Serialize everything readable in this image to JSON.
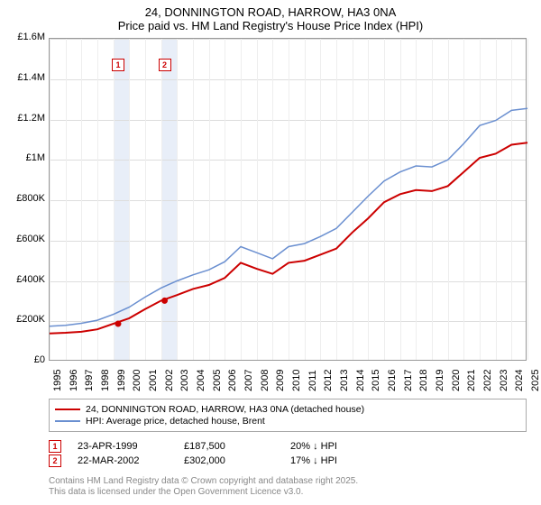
{
  "title_line1": "24, DONNINGTON ROAD, HARROW, HA3 0NA",
  "title_line2": "Price paid vs. HM Land Registry's House Price Index (HPI)",
  "chart": {
    "type": "line",
    "background_color": "#ffffff",
    "grid_color": "#dddddd",
    "border_color": "#999999",
    "band_color": "#e8eef8",
    "ylim": [
      0,
      1600000
    ],
    "ytick_step": 200000,
    "ytick_labels": [
      "£0",
      "£200K",
      "£400K",
      "£600K",
      "£800K",
      "£1M",
      "£1.2M",
      "£1.4M",
      "£1.6M"
    ],
    "x_years": [
      1995,
      1996,
      1997,
      1998,
      1999,
      2000,
      2001,
      2002,
      2003,
      2004,
      2005,
      2006,
      2007,
      2008,
      2009,
      2010,
      2011,
      2012,
      2013,
      2014,
      2015,
      2016,
      2017,
      2018,
      2019,
      2020,
      2021,
      2022,
      2023,
      2024,
      2025
    ],
    "bands": [
      {
        "start": 1999.0,
        "end": 2000.0
      },
      {
        "start": 2002.0,
        "end": 2003.0
      }
    ],
    "series": [
      {
        "name": "price_paid",
        "label": "24, DONNINGTON ROAD, HARROW, HA3 0NA (detached house)",
        "color": "#cc0000",
        "line_width": 2,
        "data": [
          [
            1995,
            140000
          ],
          [
            1996,
            143000
          ],
          [
            1997,
            148000
          ],
          [
            1998,
            160000
          ],
          [
            1999,
            187500
          ],
          [
            2000,
            215000
          ],
          [
            2001,
            260000
          ],
          [
            2002,
            302000
          ],
          [
            2003,
            330000
          ],
          [
            2004,
            360000
          ],
          [
            2005,
            380000
          ],
          [
            2006,
            415000
          ],
          [
            2007,
            490000
          ],
          [
            2008,
            460000
          ],
          [
            2009,
            435000
          ],
          [
            2010,
            490000
          ],
          [
            2011,
            500000
          ],
          [
            2012,
            530000
          ],
          [
            2013,
            560000
          ],
          [
            2014,
            640000
          ],
          [
            2015,
            710000
          ],
          [
            2016,
            790000
          ],
          [
            2017,
            830000
          ],
          [
            2018,
            850000
          ],
          [
            2019,
            845000
          ],
          [
            2020,
            870000
          ],
          [
            2021,
            940000
          ],
          [
            2022,
            1010000
          ],
          [
            2023,
            1030000
          ],
          [
            2024,
            1075000
          ],
          [
            2025,
            1085000
          ]
        ]
      },
      {
        "name": "hpi",
        "label": "HPI: Average price, detached house, Brent",
        "color": "#6a8fd0",
        "line_width": 1.5,
        "data": [
          [
            1995,
            175000
          ],
          [
            1996,
            180000
          ],
          [
            1997,
            190000
          ],
          [
            1998,
            205000
          ],
          [
            1999,
            234000
          ],
          [
            2000,
            270000
          ],
          [
            2001,
            320000
          ],
          [
            2002,
            365000
          ],
          [
            2003,
            400000
          ],
          [
            2004,
            430000
          ],
          [
            2005,
            455000
          ],
          [
            2006,
            495000
          ],
          [
            2007,
            570000
          ],
          [
            2008,
            540000
          ],
          [
            2009,
            510000
          ],
          [
            2010,
            570000
          ],
          [
            2011,
            585000
          ],
          [
            2012,
            620000
          ],
          [
            2013,
            660000
          ],
          [
            2014,
            740000
          ],
          [
            2015,
            820000
          ],
          [
            2016,
            895000
          ],
          [
            2017,
            940000
          ],
          [
            2018,
            970000
          ],
          [
            2019,
            965000
          ],
          [
            2020,
            1000000
          ],
          [
            2021,
            1080000
          ],
          [
            2022,
            1170000
          ],
          [
            2023,
            1195000
          ],
          [
            2024,
            1245000
          ],
          [
            2025,
            1255000
          ]
        ]
      }
    ],
    "markers": [
      {
        "num": "1",
        "box_color": "#cc0000",
        "year": 1999.3,
        "price": 187500
      },
      {
        "num": "2",
        "box_color": "#cc0000",
        "year": 2002.22,
        "price": 302000
      }
    ],
    "label_fontsize": 11,
    "title_fontsize": 13
  },
  "legend": {
    "items": [
      {
        "color": "#cc0000",
        "width": 2,
        "label": "24, DONNINGTON ROAD, HARROW, HA3 0NA (detached house)"
      },
      {
        "color": "#6a8fd0",
        "width": 1.5,
        "label": "HPI: Average price, detached house, Brent"
      }
    ]
  },
  "sales": [
    {
      "num": "1",
      "date": "23-APR-1999",
      "price": "£187,500",
      "pct": "20% ↓ HPI"
    },
    {
      "num": "2",
      "date": "22-MAR-2002",
      "price": "£302,000",
      "pct": "17% ↓ HPI"
    }
  ],
  "footer_line1": "Contains HM Land Registry data © Crown copyright and database right 2025.",
  "footer_line2": "This data is licensed under the Open Government Licence v3.0."
}
